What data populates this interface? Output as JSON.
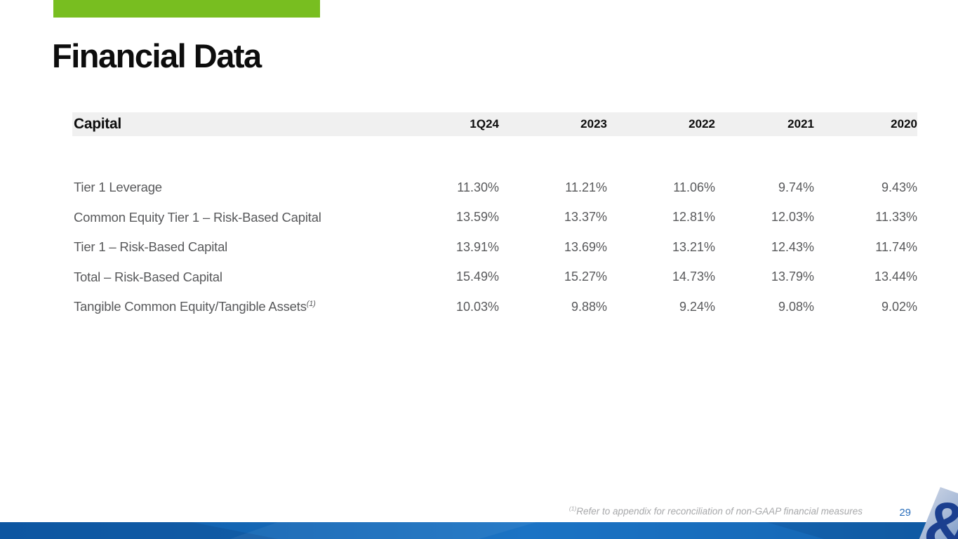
{
  "slide": {
    "title": "Financial Data",
    "page_number": "29",
    "footnote_marker": "(1)",
    "footnote_text": "Refer to appendix for reconciliation of non-GAAP financial measures"
  },
  "colors": {
    "accent_green": "#78be20",
    "header_band": "#f0f0f0",
    "body_text": "#58595b",
    "page_number_blue": "#2a6ebb",
    "bottom_bar_blue": "#1467b4",
    "logo_navy": "#1b3f8f"
  },
  "logo": {
    "glyph": "&"
  },
  "chart_data": {
    "type": "table",
    "title": "Capital",
    "categories": [
      "1Q24",
      "2023",
      "2022",
      "2021",
      "2020"
    ],
    "series": [
      {
        "name": "Tier 1 Leverage",
        "values": [
          "11.30%",
          "11.21%",
          "11.06%",
          "9.74%",
          "9.43%"
        ]
      },
      {
        "name": "Common Equity Tier 1 – Risk-Based Capital",
        "values": [
          "13.59%",
          "13.37%",
          "12.81%",
          "12.03%",
          "11.33%"
        ]
      },
      {
        "name": "Tier 1 – Risk-Based Capital",
        "values": [
          "13.91%",
          "13.69%",
          "13.21%",
          "12.43%",
          "11.74%"
        ]
      },
      {
        "name": "Total – Risk-Based Capital",
        "values": [
          "15.49%",
          "15.27%",
          "14.73%",
          "13.79%",
          "13.44%"
        ]
      },
      {
        "name": "Tangible Common Equity/Tangible Assets",
        "values": [
          "10.03%",
          "9.88%",
          "9.24%",
          "9.08%",
          "9.02%"
        ]
      }
    ]
  },
  "table": {
    "header": {
      "label": "Capital",
      "columns": [
        "1Q24",
        "2023",
        "2022",
        "2021",
        "2020"
      ]
    },
    "rows": [
      {
        "label": "Tier 1 Leverage",
        "superscript": "",
        "values": [
          "11.30%",
          "11.21%",
          "11.06%",
          "9.74%",
          "9.43%"
        ]
      },
      {
        "label": "Common Equity Tier 1 – Risk-Based Capital",
        "superscript": "",
        "values": [
          "13.59%",
          "13.37%",
          "12.81%",
          "12.03%",
          "11.33%"
        ]
      },
      {
        "label": "Tier 1 – Risk-Based Capital",
        "superscript": "",
        "values": [
          "13.91%",
          "13.69%",
          "13.21%",
          "12.43%",
          "11.74%"
        ]
      },
      {
        "label": "Total – Risk-Based Capital",
        "superscript": "",
        "values": [
          "15.49%",
          "15.27%",
          "14.73%",
          "13.79%",
          "13.44%"
        ]
      },
      {
        "label": "Tangible Common Equity/Tangible Assets",
        "superscript": "(1)",
        "values": [
          "10.03%",
          "9.88%",
          "9.24%",
          "9.08%",
          "9.02%"
        ]
      }
    ]
  }
}
